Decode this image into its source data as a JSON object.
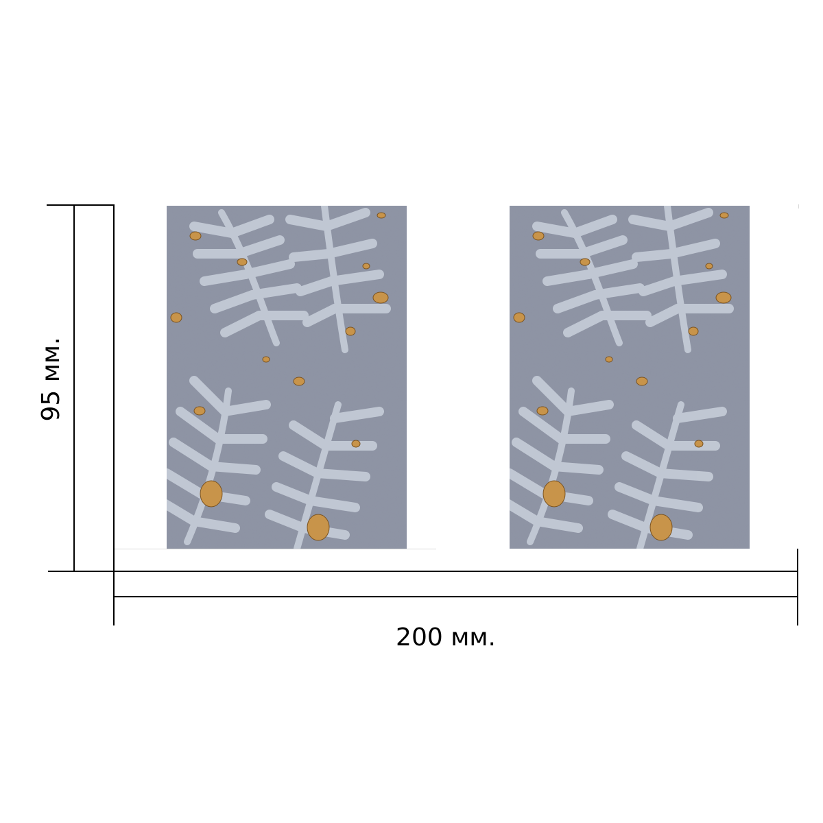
{
  "dimensions": {
    "height_label": "95 мм.",
    "width_label": "200 мм."
  },
  "colors": {
    "line": "#000000",
    "stone": "#8f95a6",
    "fern": "#c5ccd7",
    "leaf": "#c8944a"
  },
  "panels": [
    {
      "name": "panel-left",
      "icon": "fern-leaf-pattern-photo"
    },
    {
      "name": "panel-right",
      "icon": "fern-leaf-pattern-photo"
    }
  ]
}
